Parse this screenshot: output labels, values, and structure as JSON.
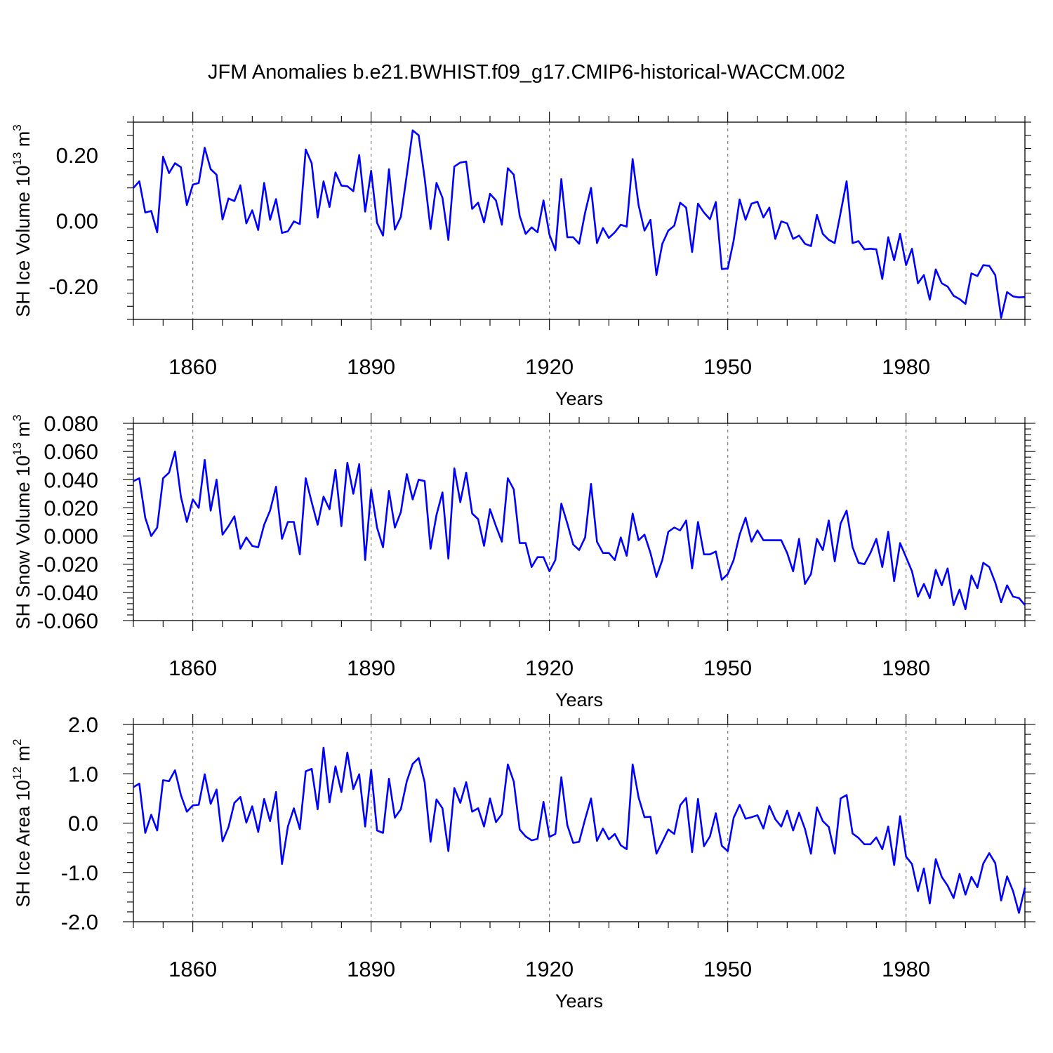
{
  "figure_title": "JFM Anomalies b.e21.BWHIST.f09_g17.CMIP6-historical-WACCM.002",
  "colors": {
    "line": "#0000ff",
    "axes": "#000000",
    "grid": "#808080"
  },
  "chart_data": [
    {
      "type": "line",
      "ylabel_main": "SH Ice Volume 10",
      "ylabel_sup": "13",
      "ylabel_unit": " m",
      "ylabel_unit_sup": "3",
      "xlabel": "Years",
      "xlim": [
        1850,
        2000
      ],
      "ylim": [
        -0.3,
        0.3
      ],
      "xticks": [
        1860,
        1890,
        1920,
        1950,
        1980
      ],
      "xtick_labels": [
        "1860",
        "1890",
        "1920",
        "1950",
        "1980"
      ],
      "yticks": [
        -0.2,
        0.0,
        0.2
      ],
      "ytick_labels": [
        "-0.20",
        "0.00",
        "0.20"
      ],
      "series": [
        {
          "name": "SH Ice Volume",
          "x_start": 1850,
          "values": [
            0.1,
            0.12,
            0.025,
            0.03,
            -0.035,
            0.195,
            0.145,
            0.175,
            0.163,
            0.048,
            0.11,
            0.115,
            0.222,
            0.157,
            0.14,
            0.004,
            0.068,
            0.06,
            0.108,
            -0.008,
            0.032,
            -0.028,
            0.115,
            0.003,
            0.066,
            -0.037,
            -0.032,
            -0.002,
            -0.01,
            0.217,
            0.175,
            0.01,
            0.12,
            0.042,
            0.147,
            0.107,
            0.105,
            0.09,
            0.2,
            0.028,
            0.152,
            -0.006,
            -0.045,
            0.157,
            -0.027,
            0.012,
            0.14,
            0.275,
            0.26,
            0.13,
            -0.025,
            0.115,
            0.07,
            -0.058,
            0.165,
            0.177,
            0.18,
            0.036,
            0.055,
            -0.005,
            0.082,
            0.062,
            -0.012,
            0.16,
            0.14,
            0.015,
            -0.04,
            -0.02,
            -0.035,
            0.062,
            -0.042,
            -0.09,
            0.127,
            -0.05,
            -0.05,
            -0.07,
            0.025,
            0.1,
            -0.068,
            -0.022,
            -0.052,
            -0.035,
            -0.012,
            -0.018,
            0.188,
            0.047,
            -0.03,
            0.003,
            -0.165,
            -0.07,
            -0.03,
            -0.015,
            0.055,
            0.04,
            -0.095,
            0.052,
            0.025,
            0.005,
            0.057,
            -0.147,
            -0.145,
            -0.06,
            0.065,
            0.003,
            0.052,
            0.058,
            0.01,
            0.04,
            -0.055,
            -0.002,
            -0.008,
            -0.055,
            -0.045,
            -0.07,
            -0.077,
            0.018,
            -0.04,
            -0.058,
            -0.068,
            0.025,
            0.12,
            -0.068,
            -0.062,
            -0.087,
            -0.085,
            -0.087,
            -0.177,
            -0.05,
            -0.12,
            -0.04,
            -0.135,
            -0.085,
            -0.19,
            -0.165,
            -0.24,
            -0.148,
            -0.19,
            -0.2,
            -0.228,
            -0.238,
            -0.253,
            -0.16,
            -0.168,
            -0.135,
            -0.137,
            -0.165,
            -0.295,
            -0.217,
            -0.23,
            -0.233,
            -0.232
          ]
        }
      ]
    },
    {
      "type": "line",
      "ylabel_main": "SH Snow Volume 10",
      "ylabel_sup": "13",
      "ylabel_unit": " m",
      "ylabel_unit_sup": "3",
      "xlabel": "Years",
      "xlim": [
        1850,
        2000
      ],
      "ylim": [
        -0.06,
        0.08
      ],
      "xticks": [
        1860,
        1890,
        1920,
        1950,
        1980
      ],
      "xtick_labels": [
        "1860",
        "1890",
        "1920",
        "1950",
        "1980"
      ],
      "yticks": [
        -0.06,
        -0.04,
        -0.02,
        0.0,
        0.02,
        0.04,
        0.06,
        0.08
      ],
      "ytick_labels": [
        "-0.060",
        "-0.040",
        "-0.020",
        "0.000",
        "0.020",
        "0.040",
        "0.060",
        "0.080"
      ],
      "series": [
        {
          "name": "SH Snow Volume",
          "x_start": 1850,
          "values": [
            0.039,
            0.041,
            0.013,
            0.0,
            0.006,
            0.041,
            0.045,
            0.06,
            0.028,
            0.01,
            0.026,
            0.02,
            0.054,
            0.018,
            0.04,
            0.001,
            0.007,
            0.014,
            -0.009,
            -0.001,
            -0.007,
            -0.008,
            0.008,
            0.018,
            0.035,
            -0.002,
            0.01,
            0.01,
            -0.013,
            0.041,
            0.024,
            0.008,
            0.028,
            0.019,
            0.047,
            0.007,
            0.052,
            0.03,
            0.051,
            -0.017,
            0.033,
            0.006,
            -0.008,
            0.032,
            0.006,
            0.017,
            0.044,
            0.026,
            0.04,
            0.039,
            -0.009,
            0.015,
            0.031,
            -0.016,
            0.048,
            0.024,
            0.045,
            0.016,
            0.012,
            -0.007,
            0.019,
            0.007,
            -0.004,
            0.041,
            0.033,
            -0.005,
            -0.005,
            -0.022,
            -0.015,
            -0.015,
            -0.025,
            -0.017,
            0.023,
            0.009,
            -0.006,
            -0.01,
            -0.001,
            0.037,
            -0.004,
            -0.012,
            -0.012,
            -0.017,
            -0.001,
            -0.014,
            0.016,
            -0.003,
            0.001,
            -0.012,
            -0.029,
            -0.017,
            0.003,
            0.006,
            0.004,
            0.011,
            -0.023,
            0.01,
            -0.013,
            -0.013,
            -0.011,
            -0.031,
            -0.027,
            -0.017,
            0.001,
            0.013,
            -0.004,
            0.004,
            -0.003,
            -0.003,
            -0.003,
            -0.003,
            -0.012,
            -0.025,
            -0.002,
            -0.034,
            -0.027,
            -0.002,
            -0.01,
            0.011,
            -0.018,
            0.009,
            0.018,
            -0.008,
            -0.019,
            -0.02,
            -0.012,
            -0.002,
            -0.022,
            0.003,
            -0.032,
            -0.005,
            -0.015,
            -0.025,
            -0.043,
            -0.034,
            -0.044,
            -0.024,
            -0.035,
            -0.023,
            -0.049,
            -0.038,
            -0.052,
            -0.028,
            -0.037,
            -0.019,
            -0.022,
            -0.033,
            -0.047,
            -0.035,
            -0.043,
            -0.044,
            -0.049
          ]
        }
      ]
    },
    {
      "type": "line",
      "ylabel_main": "SH Ice Area 10",
      "ylabel_sup": "12",
      "ylabel_unit": " m",
      "ylabel_unit_sup": "2",
      "xlabel": "Years",
      "xlim": [
        1850,
        2000
      ],
      "ylim": [
        -2.0,
        2.0
      ],
      "xticks": [
        1860,
        1890,
        1920,
        1950,
        1980
      ],
      "xtick_labels": [
        "1860",
        "1890",
        "1920",
        "1950",
        "1980"
      ],
      "yticks": [
        -2.0,
        -1.0,
        0.0,
        1.0,
        2.0
      ],
      "ytick_labels": [
        "-2.0",
        "-1.0",
        "0.0",
        "1.0",
        "2.0"
      ],
      "series": [
        {
          "name": "SH Ice Area",
          "x_start": 1850,
          "values": [
            0.73,
            0.8,
            -0.2,
            0.17,
            -0.15,
            0.87,
            0.85,
            1.07,
            0.57,
            0.23,
            0.36,
            0.37,
            0.99,
            0.39,
            0.68,
            -0.37,
            -0.08,
            0.41,
            0.53,
            0.01,
            0.34,
            -0.18,
            0.49,
            0.04,
            0.63,
            -0.83,
            -0.07,
            0.3,
            -0.12,
            1.05,
            1.1,
            0.28,
            1.53,
            0.42,
            1.15,
            0.63,
            1.43,
            0.69,
            0.99,
            -0.07,
            1.08,
            -0.15,
            -0.2,
            0.9,
            0.11,
            0.28,
            0.85,
            1.2,
            1.32,
            0.83,
            -0.38,
            0.48,
            0.3,
            -0.57,
            0.71,
            0.41,
            0.83,
            0.23,
            0.3,
            -0.07,
            0.5,
            0.02,
            0.18,
            1.19,
            0.84,
            -0.13,
            -0.27,
            -0.35,
            -0.32,
            0.43,
            -0.28,
            -0.22,
            0.93,
            -0.04,
            -0.4,
            -0.38,
            0.08,
            0.5,
            -0.36,
            -0.11,
            -0.33,
            -0.22,
            -0.45,
            -0.53,
            1.19,
            0.52,
            0.12,
            0.13,
            -0.62,
            -0.38,
            -0.13,
            -0.22,
            0.36,
            0.51,
            -0.59,
            0.49,
            -0.47,
            -0.27,
            0.2,
            -0.46,
            -0.57,
            0.11,
            0.37,
            0.09,
            0.12,
            0.16,
            -0.11,
            0.35,
            0.08,
            -0.07,
            0.25,
            -0.15,
            0.21,
            -0.12,
            -0.62,
            0.32,
            0.04,
            -0.08,
            -0.62,
            0.5,
            0.57,
            -0.21,
            -0.3,
            -0.43,
            -0.43,
            -0.29,
            -0.53,
            -0.07,
            -0.85,
            0.14,
            -0.68,
            -0.83,
            -1.38,
            -0.92,
            -1.63,
            -0.73,
            -1.09,
            -1.27,
            -1.52,
            -1.03,
            -1.45,
            -1.09,
            -1.3,
            -0.82,
            -0.61,
            -0.81,
            -1.57,
            -1.08,
            -1.38,
            -1.82,
            -1.31
          ]
        }
      ]
    }
  ]
}
